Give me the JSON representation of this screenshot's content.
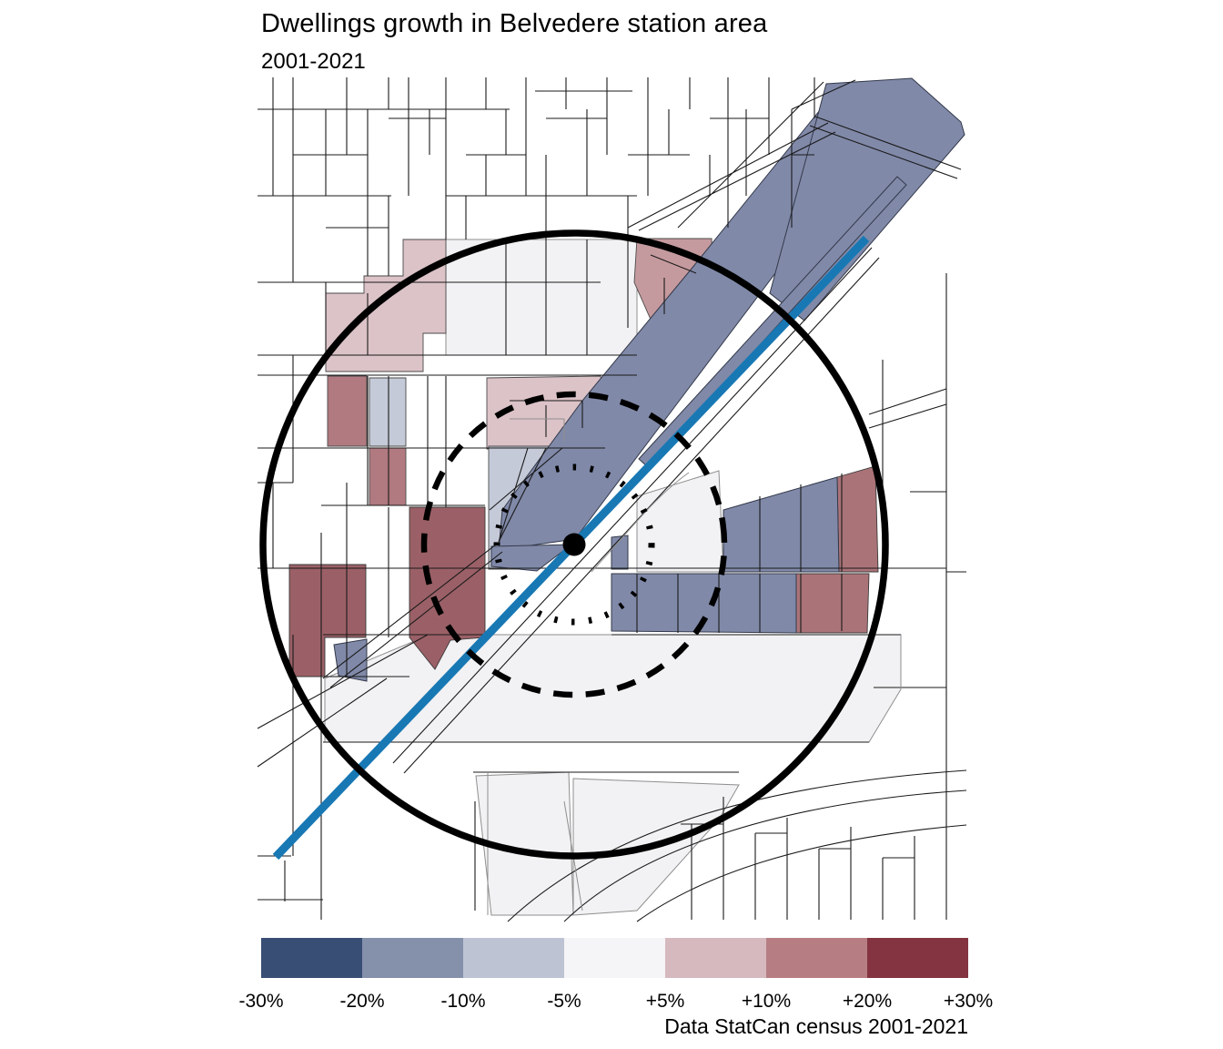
{
  "title": "Dwellings growth in Belvedere station area",
  "subtitle": "2001-2021",
  "caption": "Data StatCan census 2001-2021",
  "legend": {
    "tick_labels": [
      "-30%",
      "-20%",
      "-10%",
      "-5%",
      "+5%",
      "+10%",
      "+20%",
      "+30%"
    ],
    "colors": [
      "#394E75",
      "#8590AB",
      "#BDC3D3",
      "#F5F4F6",
      "#D5B9BE",
      "#B67E83",
      "#833440"
    ]
  },
  "map": {
    "station_marker": "black dot at Belvedere station",
    "buffer_rings": [
      {
        "name": "outer-buffer-ring",
        "style": "solid"
      },
      {
        "name": "middle-buffer-ring",
        "style": "dashed"
      },
      {
        "name": "inner-buffer-ring",
        "style": "dotted"
      }
    ],
    "palette": {
      "slate": "#8089A8",
      "slate_light": "#C5CAD8",
      "pink": "#DCC3C8",
      "rose": "#9B6067",
      "rose_mid": "#B07A80",
      "rose_east": "#AA7378",
      "rose_light": "#C59A9E",
      "near_white": "#F2F1F3",
      "rail": "#1878B4",
      "street": "#1A1A1A",
      "border_gray": "#8F8F8F",
      "ring": "#000000"
    }
  }
}
